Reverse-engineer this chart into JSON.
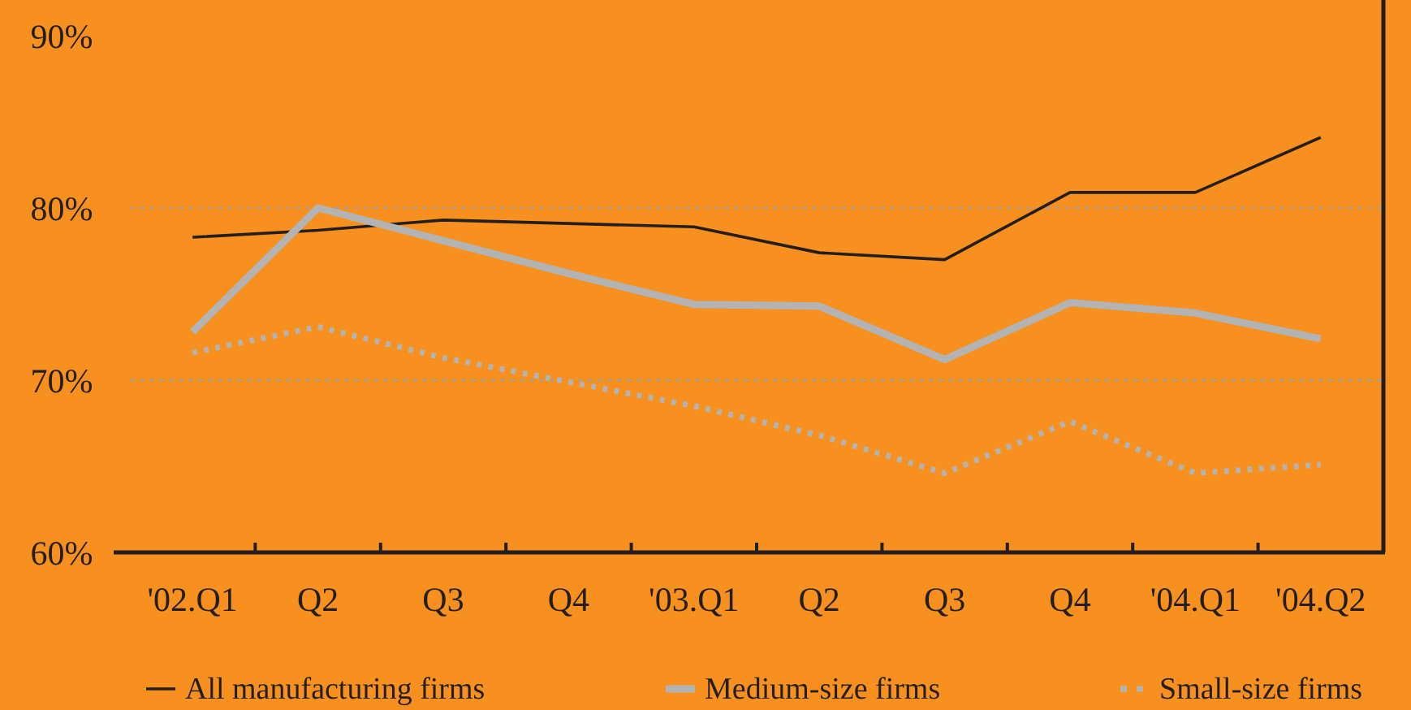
{
  "chart_data": {
    "type": "line",
    "categories": [
      "'02.Q1",
      "Q2",
      "Q3",
      "Q4",
      "'03.Q1",
      "Q2",
      "Q3",
      "Q4",
      "'04.Q1",
      "'04.Q2"
    ],
    "series": [
      {
        "name": "All manufacturing firms",
        "color": "#231f20",
        "line_style": "solid",
        "values": [
          78.3,
          78.7,
          79.3,
          79.1,
          78.9,
          77.4,
          77.0,
          80.9,
          80.9,
          84.1
        ]
      },
      {
        "name": "Medium-size firms",
        "color": "#b3b3b3",
        "line_style": "solid",
        "values": [
          72.8,
          80.0,
          78.1,
          76.2,
          74.4,
          74.3,
          71.2,
          74.5,
          73.9,
          72.4
        ]
      },
      {
        "name": "Small-size firms",
        "color": "#b3b3b3",
        "line_style": "dotted",
        "values": [
          71.6,
          73.1,
          71.3,
          69.9,
          68.5,
          66.8,
          64.6,
          67.6,
          64.6,
          65.1
        ]
      }
    ],
    "ylim": [
      60,
      90
    ],
    "yticks": [
      {
        "value": 60,
        "label": "60%"
      },
      {
        "value": 70,
        "label": "70%"
      },
      {
        "value": 80,
        "label": "80%"
      },
      {
        "value": 90,
        "label": "90%"
      }
    ],
    "grid": "y",
    "legend": "bottom",
    "marker": "none"
  }
}
